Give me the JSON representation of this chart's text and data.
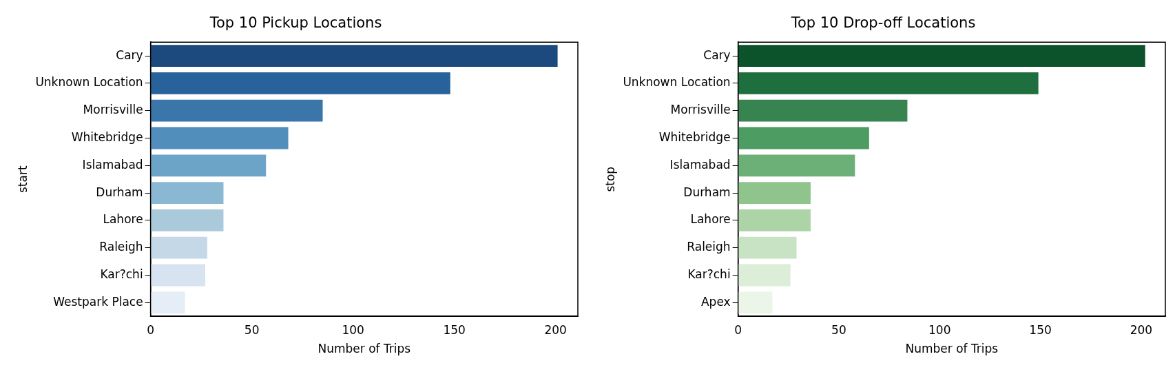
{
  "chart_data": [
    {
      "type": "bar",
      "orientation": "horizontal",
      "title": "Top 10 Pickup Locations",
      "xlabel": "Number of Trips",
      "ylabel": "start",
      "categories": [
        "Cary",
        "Unknown Location",
        "Morrisville",
        "Whitebridge",
        "Islamabad",
        "Durham",
        "Lahore",
        "Raleigh",
        "Kar?chi",
        "Westpark Place"
      ],
      "values": [
        201,
        148,
        85,
        68,
        57,
        36,
        36,
        28,
        27,
        17
      ],
      "colors": [
        "#1c4a7f",
        "#27629a",
        "#3a76a9",
        "#528ebb",
        "#6ca4c8",
        "#8ab8d3",
        "#aacadc",
        "#c5d8e8",
        "#d7e3f0",
        "#e5eef7"
      ],
      "xlim": [
        0,
        211
      ],
      "xticks": [
        0,
        50,
        100,
        150,
        200
      ],
      "grid": false,
      "legend": false
    },
    {
      "type": "bar",
      "orientation": "horizontal",
      "title": "Top 10 Drop-off Locations",
      "xlabel": "Number of Trips",
      "ylabel": "stop",
      "categories": [
        "Cary",
        "Unknown Location",
        "Morrisville",
        "Whitebridge",
        "Islamabad",
        "Durham",
        "Lahore",
        "Raleigh",
        "Kar?chi",
        "Apex"
      ],
      "values": [
        202,
        149,
        84,
        65,
        58,
        36,
        36,
        29,
        26,
        17
      ],
      "colors": [
        "#0c532b",
        "#1e6f3d",
        "#378450",
        "#4d9c62",
        "#6cb077",
        "#8fc58d",
        "#acd4a6",
        "#c8e3c3",
        "#dcedd8",
        "#ebf5e8"
      ],
      "xlim": [
        0,
        212
      ],
      "xticks": [
        0,
        50,
        100,
        150,
        200
      ],
      "grid": false,
      "legend": false
    }
  ]
}
